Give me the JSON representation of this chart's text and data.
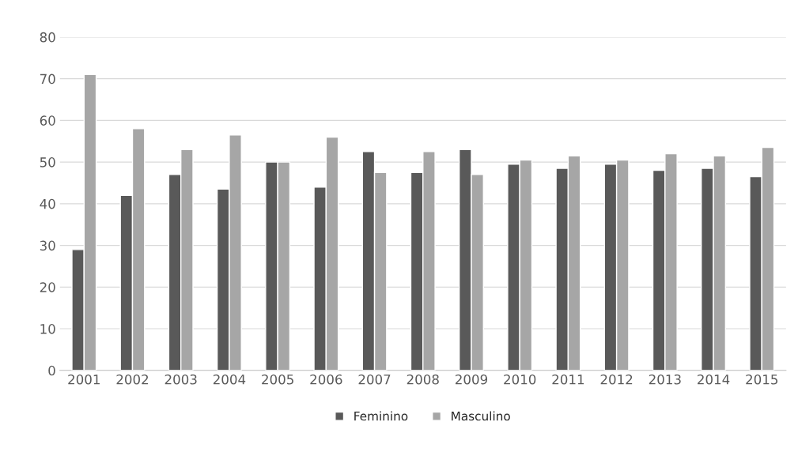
{
  "chart_data": {
    "type": "bar",
    "categories": [
      "2001",
      "2002",
      "2003",
      "2004",
      "2005",
      "2006",
      "2007",
      "2008",
      "2009",
      "2010",
      "2011",
      "2012",
      "2013",
      "2014",
      "2015"
    ],
    "series": [
      {
        "name": "Feminino",
        "color": "#595959",
        "values": [
          29,
          42,
          47,
          43.5,
          50,
          44,
          52.5,
          47.5,
          53,
          49.5,
          48.5,
          49.5,
          48,
          48.5,
          46.5
        ]
      },
      {
        "name": "Masculino",
        "color": "#a6a6a6",
        "values": [
          71,
          58,
          53,
          56.5,
          50,
          56,
          47.5,
          52.5,
          47,
          50.5,
          51.5,
          50.5,
          52,
          51.5,
          53.5
        ]
      }
    ],
    "ylim": [
      0,
      80
    ],
    "yticks": [
      0,
      10,
      20,
      30,
      40,
      50,
      60,
      70,
      80
    ],
    "grid": "y",
    "legend": "bottom"
  }
}
